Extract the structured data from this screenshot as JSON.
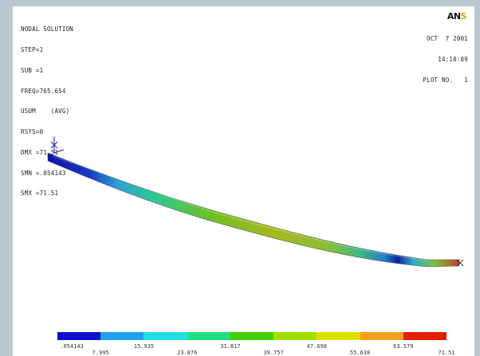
{
  "logo": {
    "main": "AN",
    "tail": "S"
  },
  "info_left": {
    "title": "NODAL SOLUTION",
    "lines": [
      "STEP=1",
      "SUB =1",
      "FREQ=765.654",
      "USUM    (AVG)",
      "RSYS=0",
      "DMX =71.51",
      "SMN =.054143",
      "SMX =71.51"
    ]
  },
  "info_right": {
    "date": "OCT  7 2001",
    "time": "14:10:09",
    "plot_no": "PLOT NO.   1"
  },
  "colors": {
    "legend": [
      "#1010c8",
      "#20a0f0",
      "#20e0e0",
      "#20e080",
      "#40d000",
      "#a0e000",
      "#e0e000",
      "#f0a020",
      "#e02000"
    ],
    "background": "#b9c8d0"
  },
  "legend": {
    "top_labels": [
      ".054143",
      "15.935",
      "31.817",
      "47.698",
      "63.579"
    ],
    "bottom_labels": [
      "7.995",
      "23.876",
      "39.757",
      "55.638",
      "71.51"
    ]
  }
}
